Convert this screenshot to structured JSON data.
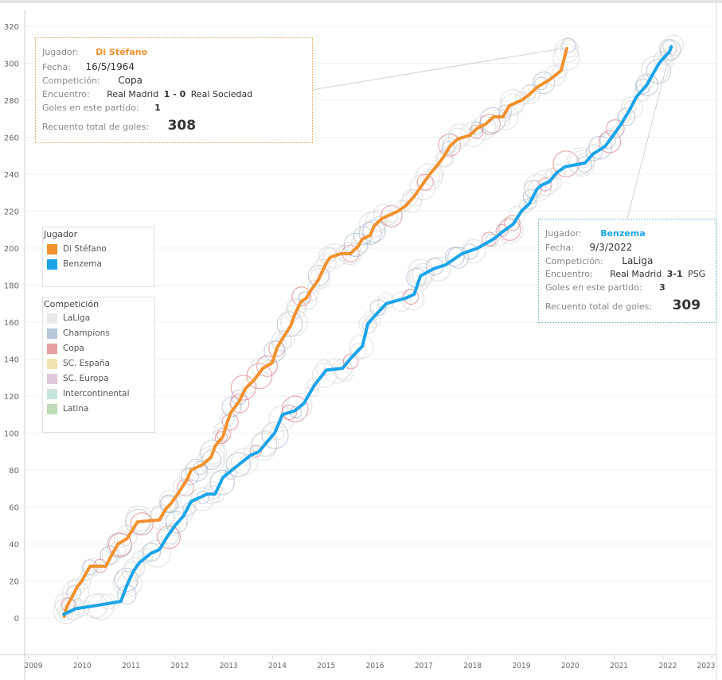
{
  "chart_data": {
    "type": "line",
    "title": "",
    "xlabel": "",
    "ylabel": "",
    "xlim": [
      2009,
      2023
    ],
    "ylim": [
      -10,
      325
    ],
    "x_ticks": [
      "2009",
      "2010",
      "2011",
      "2012",
      "2013",
      "2014",
      "2015",
      "2016",
      "2017",
      "2018",
      "2019",
      "2020",
      "2021",
      "2022",
      "2023"
    ],
    "y_ticks": [
      "0",
      "20",
      "40",
      "60",
      "80",
      "100",
      "120",
      "140",
      "160",
      "180",
      "200",
      "220",
      "240",
      "260",
      "280",
      "300",
      "320"
    ],
    "grid": true,
    "series": [
      {
        "name": "Di Stéfano",
        "color": "#f0912e",
        "x": [
          2009.73,
          2009.78,
          2009.88,
          2010.0,
          2010.09,
          2010.26,
          2010.58,
          2010.7,
          2010.83,
          2011.02,
          2011.23,
          2011.68,
          2011.81,
          2011.92,
          2012.08,
          2012.25,
          2012.33,
          2012.57,
          2012.74,
          2012.82,
          2012.98,
          2013.06,
          2013.14,
          2013.31,
          2013.44,
          2013.63,
          2013.8,
          2013.99,
          2014.09,
          2014.2,
          2014.37,
          2014.45,
          2014.58,
          2014.69,
          2014.78,
          2014.94,
          2015.1,
          2015.18,
          2015.39,
          2015.59,
          2015.75,
          2015.84,
          2016.0,
          2016.08,
          2016.24,
          2016.41,
          2016.57,
          2016.73,
          2016.9,
          2017.06,
          2017.22,
          2017.38,
          2017.52,
          2017.63,
          2017.79,
          2018.04,
          2018.2,
          2018.36,
          2018.53,
          2018.72,
          2018.85,
          2019.1,
          2019.26,
          2019.42,
          2019.67,
          2019.91,
          2020.03
        ],
        "y": [
          1,
          6,
          11,
          17,
          20,
          28,
          28,
          34,
          40,
          43,
          52,
          53,
          59,
          62,
          68,
          75,
          80,
          83,
          87,
          93,
          98,
          105,
          111,
          117,
          124,
          129,
          135,
          138,
          146,
          151,
          158,
          164,
          171,
          173,
          177,
          183,
          192,
          195,
          197,
          197,
          201,
          205,
          207,
          212,
          216,
          218,
          220,
          223,
          228,
          234,
          240,
          245,
          250,
          255,
          259,
          261,
          265,
          267,
          271,
          271,
          277,
          280,
          283,
          287,
          291,
          296,
          308
        ]
      },
      {
        "name": "Benzema",
        "color": "#1ba4e8",
        "x": [
          2009.72,
          2009.96,
          2010.45,
          2010.89,
          2011.02,
          2011.14,
          2011.27,
          2011.51,
          2011.68,
          2011.84,
          2012.0,
          2012.17,
          2012.33,
          2012.66,
          2012.82,
          2012.98,
          2013.31,
          2013.55,
          2013.72,
          2013.88,
          2014.04,
          2014.2,
          2014.45,
          2014.64,
          2014.86,
          2015.1,
          2015.43,
          2015.62,
          2015.84,
          2015.95,
          2016.08,
          2016.33,
          2016.73,
          2016.9,
          2017.03,
          2017.31,
          2017.55,
          2017.88,
          2018.2,
          2018.53,
          2018.72,
          2018.93,
          2019.1,
          2019.26,
          2019.42,
          2019.51,
          2019.67,
          2019.83,
          2019.99,
          2020.4,
          2020.57,
          2020.81,
          2020.98,
          2021.14,
          2021.3,
          2021.46,
          2021.66,
          2021.79,
          2021.92,
          2022.05,
          2022.13,
          2022.17
        ],
        "y": [
          2,
          5,
          7,
          9,
          18,
          25,
          30,
          35,
          37,
          44,
          50,
          55,
          63,
          67,
          67,
          76,
          83,
          88,
          90,
          95,
          100,
          110,
          112,
          116,
          126,
          134,
          135,
          141,
          147,
          159,
          163,
          170,
          173,
          175,
          185,
          189,
          191,
          197,
          200,
          205,
          209,
          213,
          220,
          224,
          232,
          234,
          236,
          241,
          244,
          246,
          251,
          255,
          261,
          267,
          274,
          282,
          288,
          294,
          300,
          304,
          306,
          309
        ]
      }
    ],
    "legend_players": {
      "title": "Jugador",
      "items": [
        {
          "label": "Di Stéfano",
          "color": "#f0912e"
        },
        {
          "label": "Benzema",
          "color": "#1ba4e8"
        }
      ]
    },
    "legend_competitions": {
      "title": "Competición",
      "items": [
        {
          "label": "LaLiga",
          "color": "#e8e8e8"
        },
        {
          "label": "Champions",
          "color": "#b8c6d9"
        },
        {
          "label": "Copa",
          "color": "#e8a0a0"
        },
        {
          "label": "SC. España",
          "color": "#f3e3b0"
        },
        {
          "label": "SC. Europa",
          "color": "#dfc8d8"
        },
        {
          "label": "Intercontinental",
          "color": "#c8e4df"
        },
        {
          "label": "Latina",
          "color": "#bfdbb8"
        }
      ]
    },
    "circle_colors": {
      "laliga": "#dcdcdc",
      "champions": "#9fb2cc",
      "copa": "#d9777c",
      "latina": "#9cc98f"
    }
  },
  "tooltips": {
    "di_stefano": {
      "jugador_label": "Jugador:",
      "jugador": "Di Stéfano",
      "fecha_label": "Fecha:",
      "fecha": "16/5/1964",
      "competicion_label": "Competición:",
      "competicion": "Copa",
      "encuentro_label": "Encuentro:",
      "home": "Real Madrid",
      "score": "1 - 0",
      "away": "Real Sociedad",
      "goles_label": "Goles en este partido:",
      "goles": "1",
      "total_label": "Recuento total de goles:",
      "total": "308",
      "accent": "#f0912e"
    },
    "benzema": {
      "jugador_label": "Jugador:",
      "jugador": "Benzema",
      "fecha_label": "Fecha:",
      "fecha": "9/3/2022",
      "competicion_label": "Competición:",
      "competicion": "LaLiga",
      "encuentro_label": "Encuentro:",
      "home": "Real Madrid",
      "score": "3-1",
      "away": "PSG",
      "goles_label": "Goles en este partido:",
      "goles": "3",
      "total_label": "Recuento total de goles:",
      "total": "309",
      "accent": "#1ba4e8"
    }
  }
}
